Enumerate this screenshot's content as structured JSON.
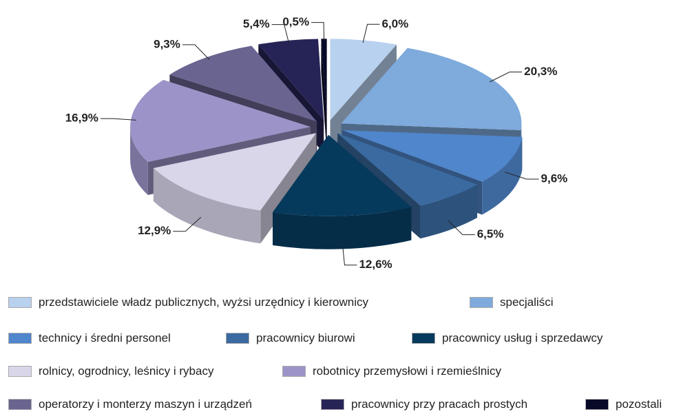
{
  "chart_data": {
    "type": "pie",
    "categories": [
      "przedstawiciele władz publicznych, wyżsi urzędnicy i kierownicy",
      "specjaliści",
      "technicy i średni personel",
      "pracownicy biurowi",
      "pracownicy usług i sprzedawcy",
      "rolnicy, ogrodnicy, leśnicy i rybacy",
      "robotnicy przemysłowi i rzemieślnicy",
      "operatorzy i monterzy maszyn i urządzeń",
      "pracownicy przy pracach prostych",
      "pozostali"
    ],
    "values": [
      6.0,
      20.3,
      9.6,
      6.5,
      12.6,
      12.9,
      16.9,
      9.3,
      5.4,
      0.5
    ],
    "value_labels": [
      "6,0%",
      "20,3%",
      "9,6%",
      "6,5%",
      "12,6%",
      "12,9%",
      "16,9%",
      "9,3%",
      "5,4%",
      "0,5%"
    ],
    "colors": [
      "#b8d1ee",
      "#7eaadc",
      "#4f86cc",
      "#3a6aa0",
      "#063a5c",
      "#d9d6ea",
      "#9c94c8",
      "#6a6490",
      "#262456",
      "#080828"
    ],
    "legend": "bottom"
  }
}
